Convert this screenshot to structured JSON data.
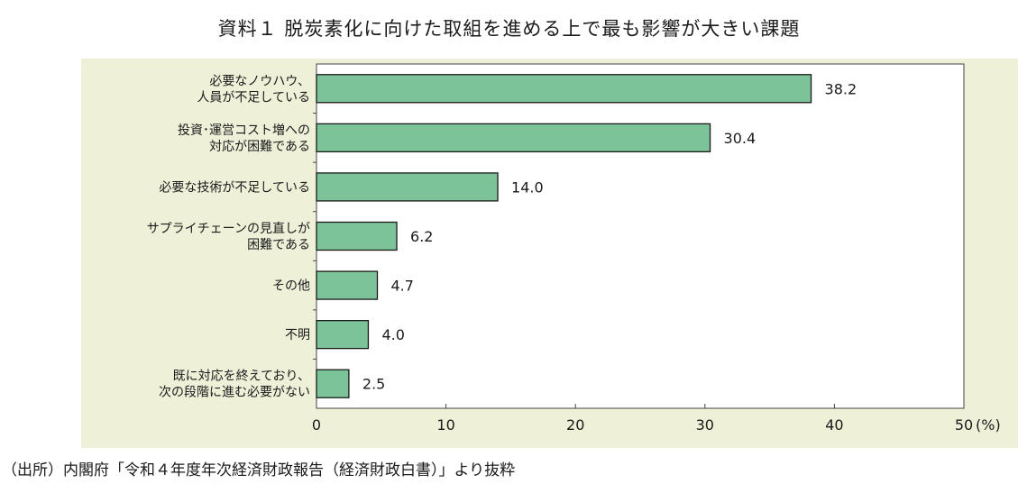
{
  "title": "資料１ 脱炭素化に向けた取組を進める上で最も影響が大きい課題",
  "source": "（出所）内閣府「令和４年度年次経済財政報告（経済財政白書）」より抜粋",
  "chart_data": {
    "type": "bar",
    "orientation": "horizontal",
    "categories": [
      [
        "必要なノウハウ、",
        "人員が不足している"
      ],
      [
        "投資･運営コスト増への",
        "対応が困難である"
      ],
      [
        "必要な技術が不足している"
      ],
      [
        "サプライチェーンの見直しが",
        "困難である"
      ],
      [
        "その他"
      ],
      [
        "不明"
      ],
      [
        "既に対応を終えており、",
        "次の段階に進む必要がない"
      ]
    ],
    "values": [
      38.2,
      30.4,
      14.0,
      6.2,
      4.7,
      4.0,
      2.5
    ],
    "value_labels": [
      "38.2",
      "30.4",
      "14.0",
      "6.2",
      "4.7",
      "4.0",
      "2.5"
    ],
    "xlim": [
      0,
      50
    ],
    "xticks": [
      "0",
      "10",
      "20",
      "30",
      "40",
      "50"
    ],
    "unit_label": "(%)",
    "grid": false,
    "colors": {
      "bar_fill": "#7dc39a",
      "bar_stroke": "#1a1a1a",
      "panel_bg": "#eef1d8",
      "plot_bg": "#ffffff"
    }
  }
}
